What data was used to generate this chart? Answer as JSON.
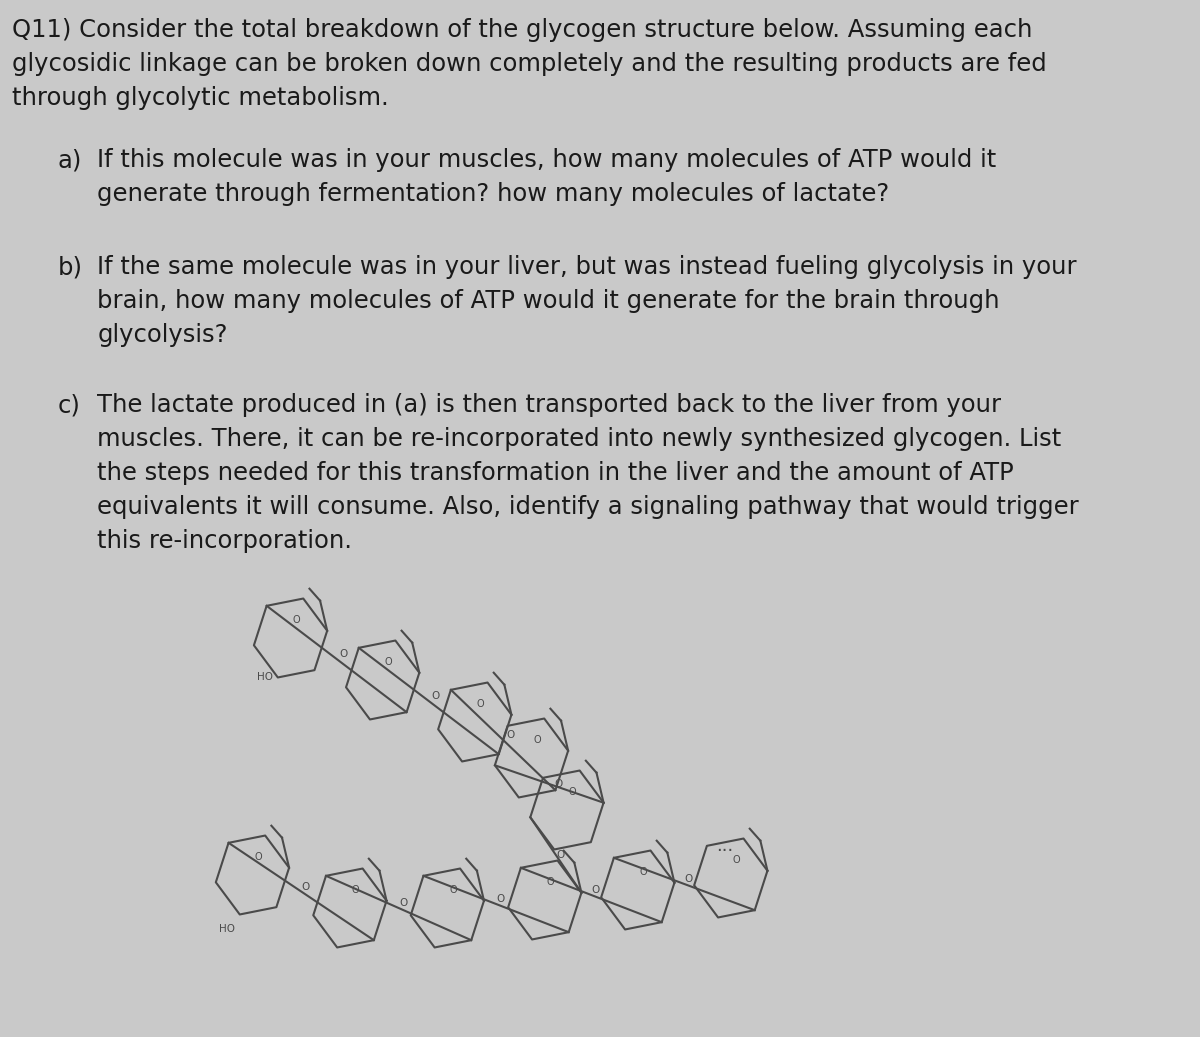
{
  "background_color": "#c9c9c9",
  "text_color": "#1a1a1a",
  "ring_color": "#4a4a4a",
  "title_line1": "Q11) Consider the total breakdown of the glycogen structure below. Assuming each",
  "title_line2": "glycosidic linkage can be broken down completely and the resulting products are fed",
  "title_line3": "through glycolytic metabolism.",
  "qa_label": "a)",
  "qa_text_line1": "If this molecule was in your muscles, how many molecules of ATP would it",
  "qa_text_line2": "generate through fermentation? how many molecules of lactate?",
  "qb_label": "b)",
  "qb_text_line1": "If the same molecule was in your liver, but was instead fueling glycolysis in your",
  "qb_text_line2": "brain, how many molecules of ATP would it generate for the brain through",
  "qb_text_line3": "glycolysis?",
  "qc_label": "c)",
  "qc_text_line1": "The lactate produced in (a) is then transported back to the liver from your",
  "qc_text_line2": "muscles. There, it can be re-incorporated into newly synthesized glycogen. List",
  "qc_text_line3": "the steps needed for this transformation in the liver and the amount of ATP",
  "qc_text_line4": "equivalents it will consume. Also, identify a signaling pathway that would trigger",
  "qc_text_line5": "this re-incorporation.",
  "font_size_main": 17.5,
  "struct_lw": 1.5,
  "ring_size": 0.38
}
